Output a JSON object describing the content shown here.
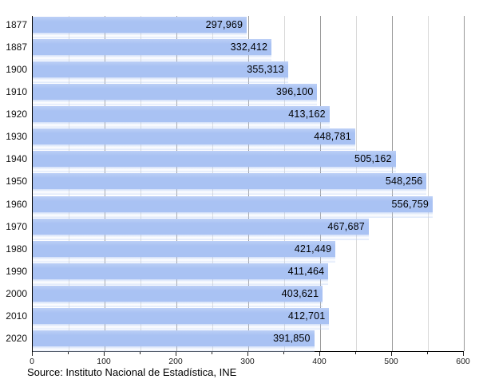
{
  "chart_data": {
    "type": "bar",
    "orientation": "horizontal",
    "title": "",
    "xlabel": "",
    "ylabel": "",
    "categories": [
      "1877",
      "1887",
      "1900",
      "1910",
      "1920",
      "1930",
      "1940",
      "1950",
      "1960",
      "1970",
      "1980",
      "1990",
      "2000",
      "2010",
      "2020"
    ],
    "values": [
      297969,
      332412,
      355313,
      396100,
      413162,
      448781,
      505162,
      548256,
      556759,
      467687,
      421449,
      411464,
      403621,
      412701,
      391850
    ],
    "value_labels": [
      "297,969",
      "332,412",
      "355,313",
      "396,100",
      "413,162",
      "448,781",
      "505,162",
      "548,256",
      "556,759",
      "467,687",
      "421,449",
      "411,464",
      "403,621",
      "412,701",
      "391,850"
    ],
    "x_axis": {
      "min": 0,
      "max": 600000,
      "axis_scale_note": "tick labels shown in thousands",
      "tick_labels": [
        "0",
        "100",
        "200",
        "300",
        "400",
        "500",
        "600"
      ],
      "labeled_tick_step": 100000,
      "minor_tick_step": 50000
    },
    "grid": {
      "vertical": true,
      "minor_every": 50000,
      "major_every": 100000
    },
    "legend": "none",
    "colors": {
      "bar": "#a9c2f3",
      "bar_highlight": "#c6d6f8",
      "grid_major": "#999999",
      "grid_minor": "#d8d8d8",
      "axis": "#000000",
      "text": "#000000"
    }
  },
  "source": {
    "text": "Source: Instituto Nacional de Estadística, INE"
  }
}
